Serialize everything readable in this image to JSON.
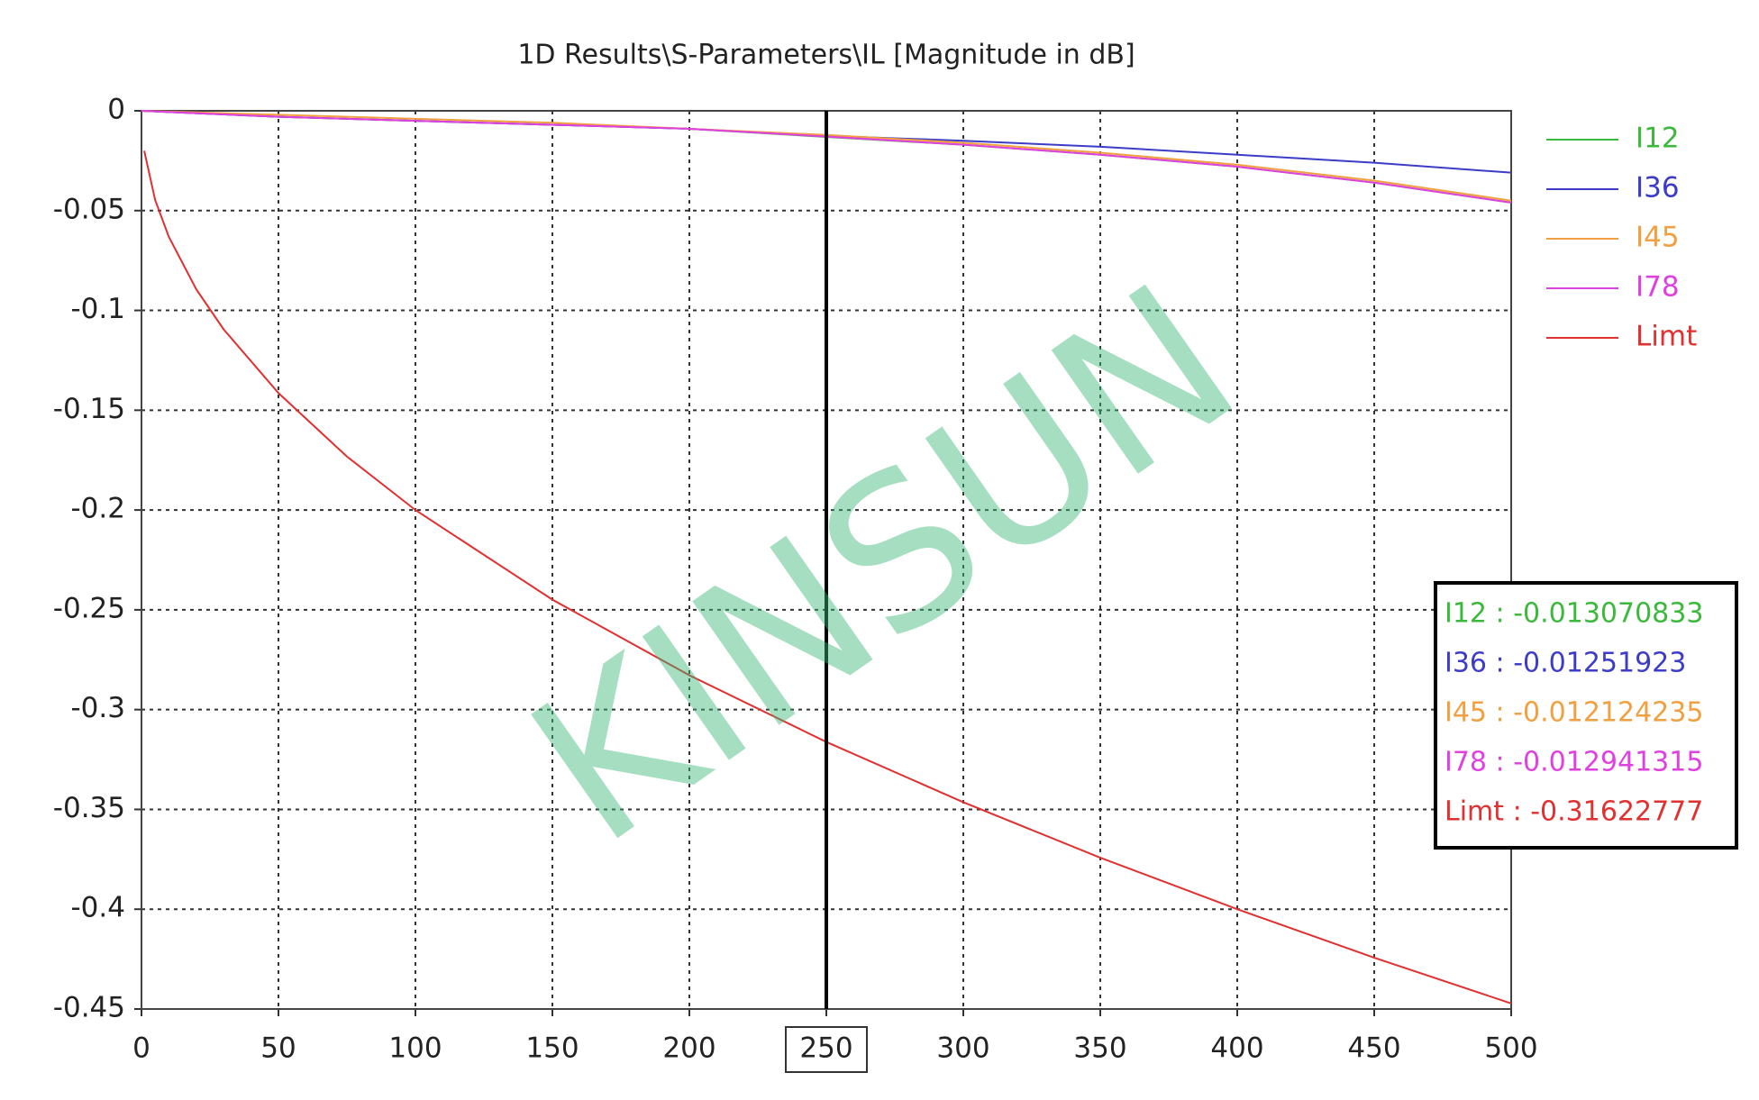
{
  "chart_data": {
    "type": "line",
    "title": "1D Results\\S-Parameters\\IL [Magnitude in dB]",
    "xlim": [
      0,
      500
    ],
    "xticks": [
      0,
      50,
      100,
      150,
      200,
      250,
      300,
      350,
      400,
      450,
      500
    ],
    "ylim": [
      -0.45,
      0
    ],
    "yticks": [
      0,
      -0.05,
      -0.1,
      -0.15,
      -0.2,
      -0.25,
      -0.3,
      -0.35,
      -0.4,
      -0.45
    ],
    "grid": true,
    "legend": "right",
    "cursor_x": 250,
    "series": [
      {
        "name": "I12",
        "color": "#3cb83c",
        "x": [
          0,
          50,
          100,
          150,
          200,
          250,
          300,
          350,
          400,
          450,
          500
        ],
        "values": [
          0,
          -0.003,
          -0.005,
          -0.007,
          -0.009,
          -0.0131,
          -0.017,
          -0.022,
          -0.028,
          -0.036,
          -0.046
        ]
      },
      {
        "name": "I36",
        "color": "#3c3cc8",
        "x": [
          0,
          50,
          100,
          150,
          200,
          250,
          300,
          350,
          400,
          450,
          500
        ],
        "values": [
          0,
          -0.003,
          -0.005,
          -0.007,
          -0.009,
          -0.0125,
          -0.015,
          -0.018,
          -0.022,
          -0.026,
          -0.031
        ]
      },
      {
        "name": "I45",
        "color": "#f0a040",
        "x": [
          0,
          50,
          100,
          150,
          200,
          250,
          300,
          350,
          400,
          450,
          500
        ],
        "values": [
          0,
          -0.002,
          -0.004,
          -0.006,
          -0.009,
          -0.0121,
          -0.016,
          -0.021,
          -0.027,
          -0.035,
          -0.045
        ]
      },
      {
        "name": "I78",
        "color": "#e040e0",
        "x": [
          0,
          50,
          100,
          150,
          200,
          250,
          300,
          350,
          400,
          450,
          500
        ],
        "values": [
          0,
          -0.003,
          -0.005,
          -0.007,
          -0.009,
          -0.0129,
          -0.017,
          -0.022,
          -0.028,
          -0.036,
          -0.046
        ]
      },
      {
        "name": "Limt",
        "color": "#e03030",
        "x": [
          1,
          5,
          10,
          20,
          30,
          50,
          75,
          100,
          150,
          200,
          250,
          300,
          350,
          400,
          450,
          500
        ],
        "values": [
          -0.02,
          -0.0447,
          -0.0632,
          -0.0894,
          -0.1095,
          -0.1414,
          -0.1732,
          -0.2,
          -0.2449,
          -0.2828,
          -0.3162,
          -0.3464,
          -0.3742,
          -0.4,
          -0.4243,
          -0.4472
        ]
      }
    ],
    "readout": [
      "I12 : -0.013070833",
      "I36 : -0.01251923",
      "I45 : -0.012124235",
      "I78 : -0.012941315",
      "Limt : -0.31622777"
    ],
    "watermark": "KINSUN"
  }
}
